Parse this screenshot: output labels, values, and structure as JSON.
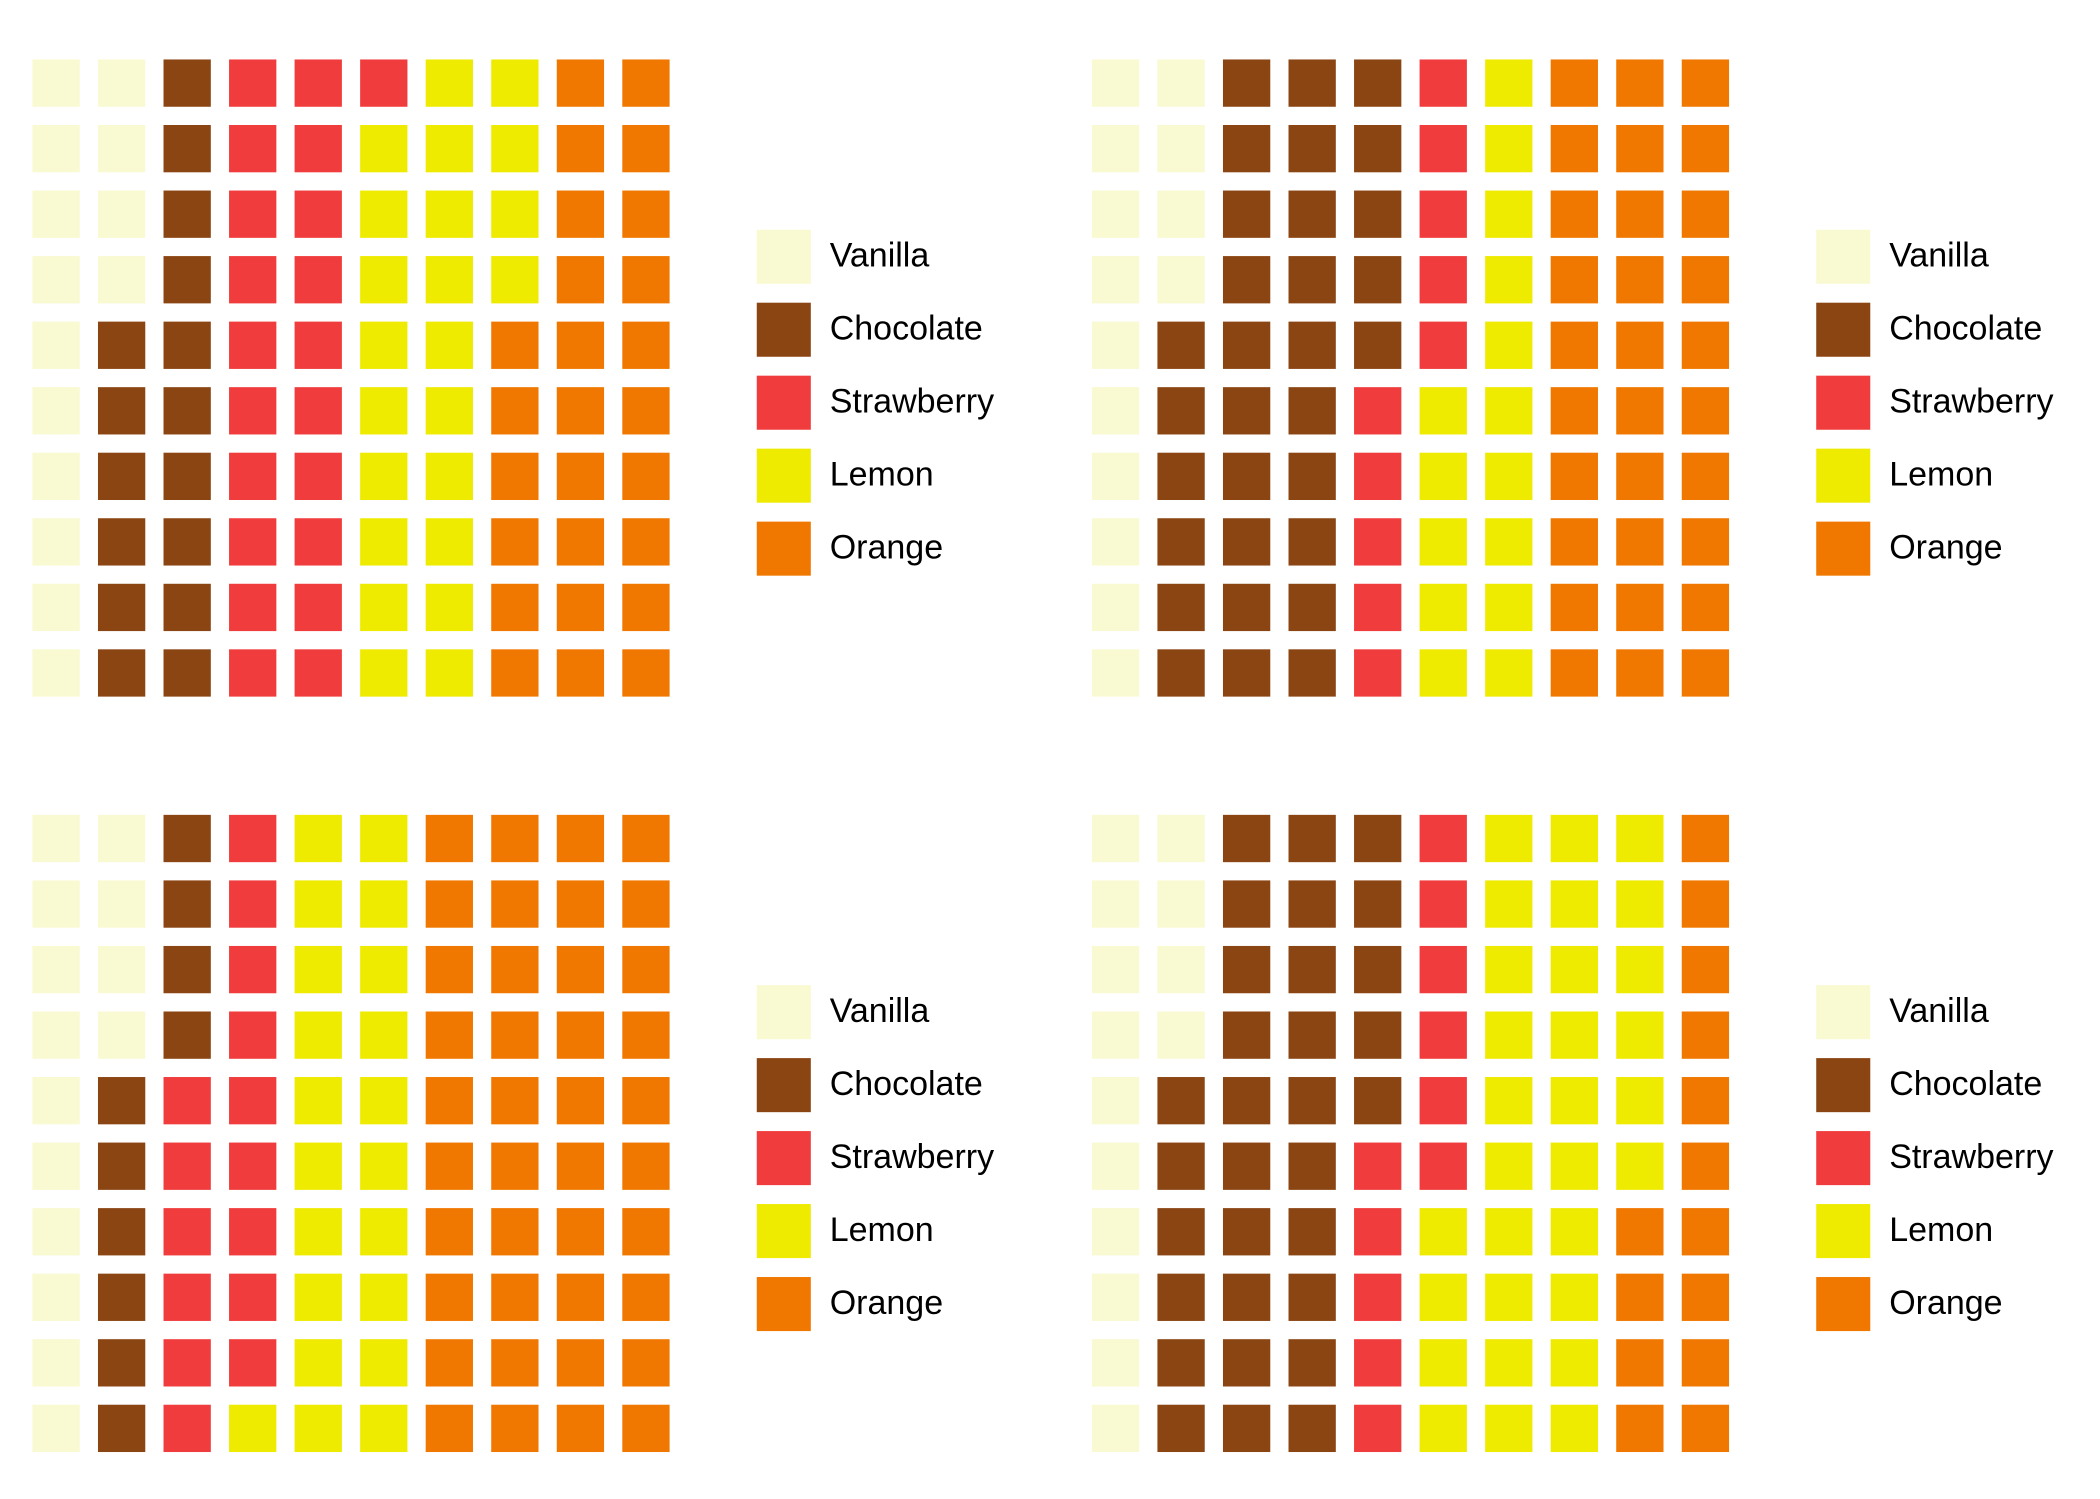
{
  "chart_data": [
    {
      "type": "waffle",
      "grid": {
        "rows": 10,
        "cols": 10
      },
      "order": "column-major, top-to-bottom",
      "categories": [
        "Vanilla",
        "Chocolate",
        "Strawberry",
        "Lemon",
        "Orange"
      ],
      "values": [
        14,
        16,
        21,
        23,
        26
      ],
      "legend": "right"
    },
    {
      "type": "waffle",
      "grid": {
        "rows": 10,
        "cols": 10
      },
      "order": "column-major, top-to-bottom",
      "categories": [
        "Vanilla",
        "Chocolate",
        "Strawberry",
        "Lemon",
        "Orange"
      ],
      "values": [
        14,
        31,
        10,
        15,
        30
      ],
      "legend": "right"
    },
    {
      "type": "waffle",
      "grid": {
        "rows": 10,
        "cols": 10
      },
      "order": "column-major, top-to-bottom",
      "categories": [
        "Vanilla",
        "Chocolate",
        "Strawberry",
        "Lemon",
        "Orange"
      ],
      "values": [
        14,
        10,
        15,
        21,
        40
      ],
      "legend": "right"
    },
    {
      "type": "waffle",
      "grid": {
        "rows": 10,
        "cols": 10
      },
      "order": "column-major, top-to-bottom",
      "categories": [
        "Vanilla",
        "Chocolate",
        "Strawberry",
        "Lemon",
        "Orange"
      ],
      "values": [
        14,
        31,
        11,
        30,
        14
      ],
      "legend": "right"
    }
  ],
  "colors": {
    "Vanilla": "#f9f9d2",
    "Chocolate": "#8b4513",
    "Strawberry": "#f03c3c",
    "Lemon": "#eeeb00",
    "Orange": "#f07800"
  }
}
